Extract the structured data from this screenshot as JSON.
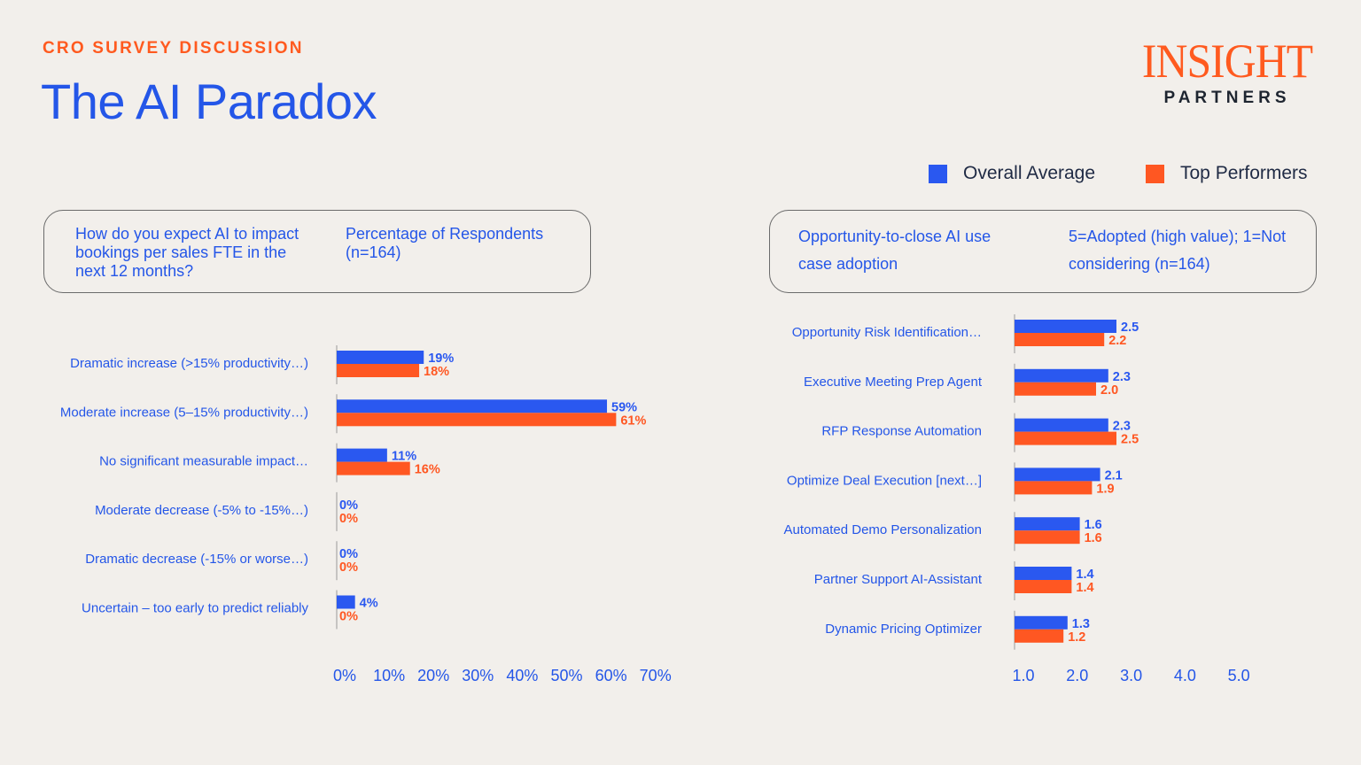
{
  "header": {
    "eyebrow": "CRO SURVEY DISCUSSION",
    "title": "The AI Paradox"
  },
  "logo": {
    "line1": "INSIGHT",
    "line2": "PARTNERS"
  },
  "colors": {
    "overall": "#2a58f0",
    "top": "#ff5722",
    "text": "#2456e8",
    "accent": "#ff5a1f",
    "background": "#f2efeb"
  },
  "legend": [
    {
      "label": "Overall Average",
      "color": "#2a58f0"
    },
    {
      "label": "Top Performers",
      "color": "#ff5722"
    }
  ],
  "left_box": {
    "question": "How do you expect AI to impact bookings per sales FTE in the next 12 months?",
    "metric": "Percentage of Respondents (n=164)"
  },
  "right_box": {
    "question": "Opportunity-to-close AI use case adoption",
    "metric": "5=Adopted (high value); 1=Not considering (n=164)"
  },
  "chart_data": [
    {
      "type": "bar",
      "orientation": "horizontal",
      "categories": [
        "Dramatic increase (>15% productivity…)",
        "Moderate increase (5–15% productivity…)",
        "No significant measurable impact…",
        "Moderate decrease (-5% to -15%…)",
        "Dramatic decrease (-15% or worse…)",
        "Uncertain – too early to predict reliably"
      ],
      "series": [
        {
          "name": "Overall Average",
          "values": [
            19,
            59,
            11,
            0,
            0,
            4
          ],
          "labels": [
            "19%",
            "59%",
            "11%",
            "0%",
            "0%",
            "4%"
          ]
        },
        {
          "name": "Top Performers",
          "values": [
            18,
            61,
            16,
            0,
            0,
            0
          ],
          "labels": [
            "18%",
            "61%",
            "16%",
            "0%",
            "0%",
            "0%"
          ]
        }
      ],
      "xticks": [
        "0%",
        "10%",
        "20%",
        "30%",
        "40%",
        "50%",
        "60%",
        "70%"
      ],
      "xlim": [
        0,
        70
      ],
      "grid": false,
      "legend": "top-right"
    },
    {
      "type": "bar",
      "orientation": "horizontal",
      "categories": [
        "Opportunity Risk Identification…",
        "Executive Meeting Prep Agent",
        "RFP Response Automation",
        "Optimize Deal Execution [next…]",
        "Automated Demo Personalization",
        "Partner Support AI-Assistant",
        "Dynamic Pricing Optimizer"
      ],
      "series": [
        {
          "name": "Overall Average",
          "values": [
            2.5,
            2.3,
            2.3,
            2.1,
            1.6,
            1.4,
            1.3
          ],
          "labels": [
            "2.5",
            "2.3",
            "2.3",
            "2.1",
            "1.6",
            "1.4",
            "1.3"
          ]
        },
        {
          "name": "Top Performers",
          "values": [
            2.2,
            2.0,
            2.5,
            1.9,
            1.6,
            1.4,
            1.2
          ],
          "labels": [
            "2.2",
            "2.0",
            "2.5",
            "1.9",
            "1.6",
            "1.4",
            "1.2"
          ]
        }
      ],
      "xticks": [
        "1.0",
        "2.0",
        "3.0",
        "4.0",
        "5.0"
      ],
      "xlim": [
        1,
        5
      ],
      "grid": false,
      "legend": "top-right"
    }
  ]
}
